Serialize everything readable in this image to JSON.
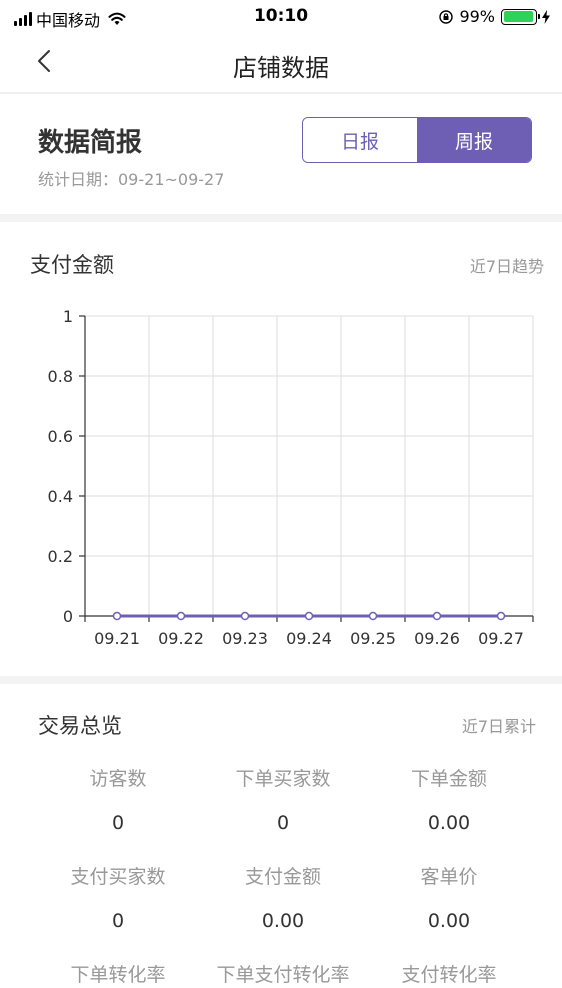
{
  "status_bar": {
    "carrier": "中国移动",
    "time": "10:10",
    "battery": "99%"
  },
  "nav": {
    "title": "店铺数据"
  },
  "summary": {
    "title": "数据简报",
    "date": "统计日期：09-21~09-27",
    "tabs": [
      {
        "label": "日报",
        "active": false
      },
      {
        "label": "周报",
        "active": true
      }
    ]
  },
  "payment": {
    "title": "支付金额",
    "note": "近7日趋势"
  },
  "chart_data": {
    "type": "line",
    "x": [
      "09.21",
      "09.22",
      "09.23",
      "09.24",
      "09.25",
      "09.26",
      "09.27"
    ],
    "series": [
      {
        "values": [
          0,
          0,
          0,
          0,
          0,
          0,
          0
        ],
        "color": "#6e5fb4"
      }
    ],
    "y_ticks": [
      "0",
      "0.2",
      "0.4",
      "0.6",
      "0.8",
      "1"
    ],
    "ylim": [
      0,
      1
    ],
    "grid": true
  },
  "transactions": {
    "title": "交易总览",
    "note": "近7日累计",
    "stats": [
      {
        "label": "访客数",
        "value": "0"
      },
      {
        "label": "下单买家数",
        "value": "0"
      },
      {
        "label": "下单金额",
        "value": "0.00"
      },
      {
        "label": "支付买家数",
        "value": "0"
      },
      {
        "label": "支付金额",
        "value": "0.00"
      },
      {
        "label": "客单价",
        "value": "0.00"
      },
      {
        "label": "下单转化率",
        "value": ""
      },
      {
        "label": "下单支付转化率",
        "value": ""
      },
      {
        "label": "支付转化率",
        "value": ""
      }
    ]
  }
}
